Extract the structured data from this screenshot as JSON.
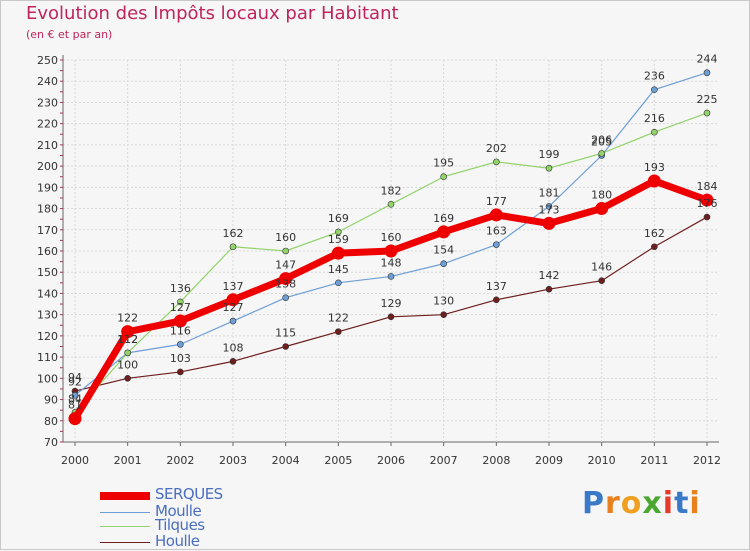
{
  "title": "Evolution des Impôts locaux par Habitant",
  "subtitle": "(en € et par an)",
  "logo": "Proxiti",
  "chart_data": {
    "type": "line",
    "title": "Evolution des Impôts locaux par Habitant",
    "subtitle": "(en € et par an)",
    "ylim": [
      70,
      250
    ],
    "y_ticks": [
      70,
      80,
      90,
      100,
      110,
      120,
      130,
      140,
      150,
      160,
      170,
      180,
      190,
      200,
      210,
      220,
      230,
      240,
      250
    ],
    "categories": [
      "2000",
      "2001",
      "2002",
      "2003",
      "2004",
      "2005",
      "2006",
      "2007",
      "2008",
      "2009",
      "2010",
      "2011",
      "2012"
    ],
    "legend_position": "bottom-left",
    "series": [
      {
        "name": "Houlle",
        "color": "#6e1e1e",
        "values": [
          94,
          100,
          103,
          108,
          115,
          122,
          129,
          130,
          137,
          142,
          146,
          162,
          176
        ],
        "labels": [
          "94",
          "100",
          "103",
          "108",
          "115",
          "122",
          "129",
          "130",
          "137",
          "142",
          "146",
          "162",
          "176"
        ]
      },
      {
        "name": "Moulle",
        "color": "#6d9ed6",
        "values": [
          92,
          112,
          116,
          127,
          138,
          145,
          148,
          154,
          163,
          181,
          205,
          236,
          244
        ],
        "labels": [
          "92",
          "112",
          "116",
          "127",
          "138",
          "145",
          "148",
          "154",
          "163",
          "181",
          "205",
          "236",
          "244"
        ]
      },
      {
        "name": "Tilques",
        "color": "#92d36a",
        "values": [
          84,
          112,
          136,
          162,
          160,
          169,
          182,
          195,
          202,
          199,
          206,
          216,
          225
        ],
        "labels": [
          "84",
          "112",
          "136",
          "162",
          "160",
          "169",
          "182",
          "195",
          "202",
          "199",
          "206",
          "216",
          "225"
        ]
      },
      {
        "name": "SERQUES",
        "color": "#ee0000",
        "values": [
          81,
          122,
          127,
          137,
          147,
          159,
          160,
          169,
          177,
          173,
          180,
          193,
          184
        ],
        "labels": [
          "81",
          "122",
          "127",
          "137",
          "147",
          "159",
          "160",
          "169",
          "177",
          "173",
          "180",
          "193",
          "184"
        ]
      }
    ]
  }
}
